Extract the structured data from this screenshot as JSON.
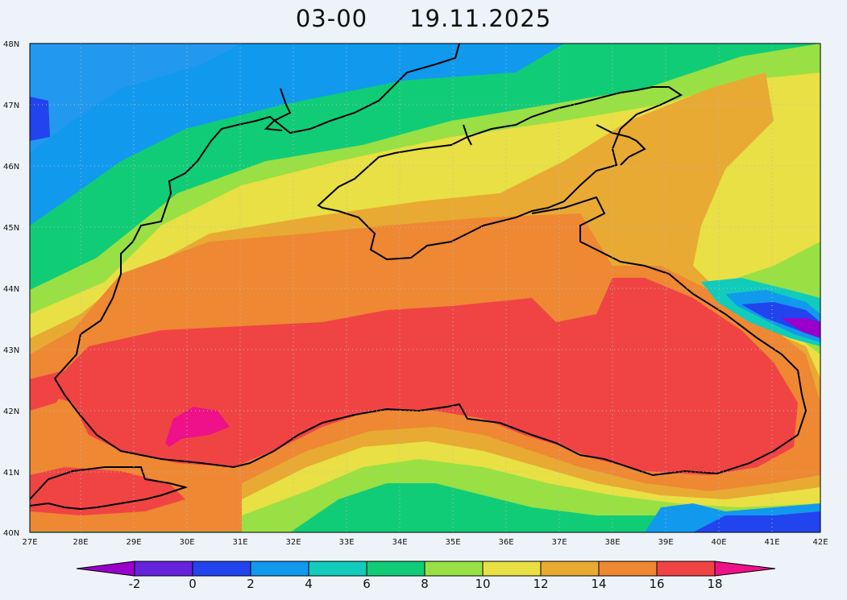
{
  "header": {
    "time": "03-00",
    "date": "19.11.2025"
  },
  "axes": {
    "lat_labels": [
      "40N",
      "41N",
      "42N",
      "43N",
      "44N",
      "45N",
      "46N",
      "47N",
      "48N"
    ],
    "lon_labels": [
      "27E",
      "28E",
      "29E",
      "30E",
      "31E",
      "32E",
      "33E",
      "34E",
      "35E",
      "36E",
      "37E",
      "38E",
      "39E",
      "40E",
      "41E",
      "42E"
    ]
  },
  "colorbar": {
    "labels": [
      "-2",
      "0",
      "2",
      "4",
      "6",
      "8",
      "10",
      "12",
      "14",
      "16",
      "18"
    ],
    "colors": [
      "#9900cc",
      "#6622dd",
      "#2244ee",
      "#1199ee",
      "#11ccbb",
      "#11cc77",
      "#99e044",
      "#e8e044",
      "#e8aa33",
      "#ee8833",
      "#f04444",
      "#ee1188"
    ]
  },
  "map": {
    "land_outside_sea_left": "#11cc77",
    "sea_core": "#f04444"
  }
}
